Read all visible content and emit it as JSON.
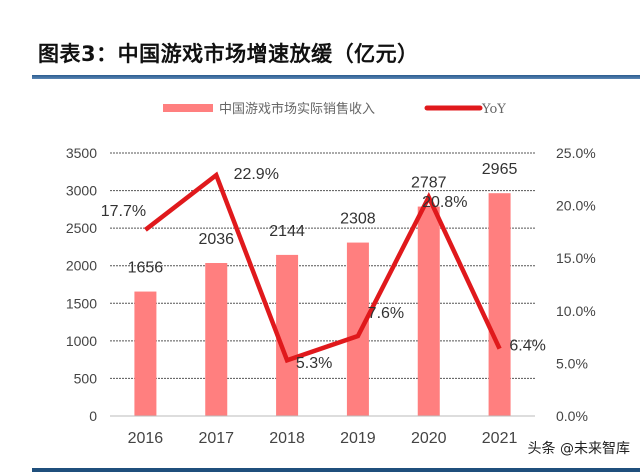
{
  "chart_data": {
    "type": "bar",
    "title": "图表3：中国游戏市场增速放缓（亿元）",
    "categories": [
      "2016",
      "2017",
      "2018",
      "2019",
      "2020",
      "2021"
    ],
    "series": [
      {
        "name": "中国游戏市场实际销售收入",
        "type": "bar",
        "axis": "left",
        "values": [
          1656,
          2036,
          2144,
          2308,
          2787,
          2965
        ],
        "labels": [
          "1656",
          "2036",
          "2144",
          "2308",
          "2787",
          "2965"
        ]
      },
      {
        "name": "YoY",
        "type": "line",
        "axis": "right",
        "values": [
          17.7,
          22.9,
          5.3,
          7.6,
          20.8,
          6.4
        ],
        "labels": [
          "17.7%",
          "22.9%",
          "5.3%",
          "7.6%",
          "20.8%",
          "6.4%"
        ]
      }
    ],
    "y_left": {
      "ylim": [
        0,
        3500
      ],
      "ticks": [
        "0",
        "500",
        "1000",
        "1500",
        "2000",
        "2500",
        "3000",
        "3500"
      ],
      "tick_values": [
        0,
        500,
        1000,
        1500,
        2000,
        2500,
        3000,
        3500
      ]
    },
    "y_right": {
      "ylim": [
        0,
        25
      ],
      "ticks": [
        "0.0%",
        "5.0%",
        "10.0%",
        "15.0%",
        "20.0%",
        "25.0%"
      ],
      "tick_values": [
        0,
        5,
        10,
        15,
        20,
        25
      ]
    },
    "grid": true,
    "legend": "top-center",
    "colors": {
      "bar": "#ff7f7f",
      "line": "#e0191c",
      "grid": "#555555"
    }
  },
  "watermark": "头条 @未来智库"
}
